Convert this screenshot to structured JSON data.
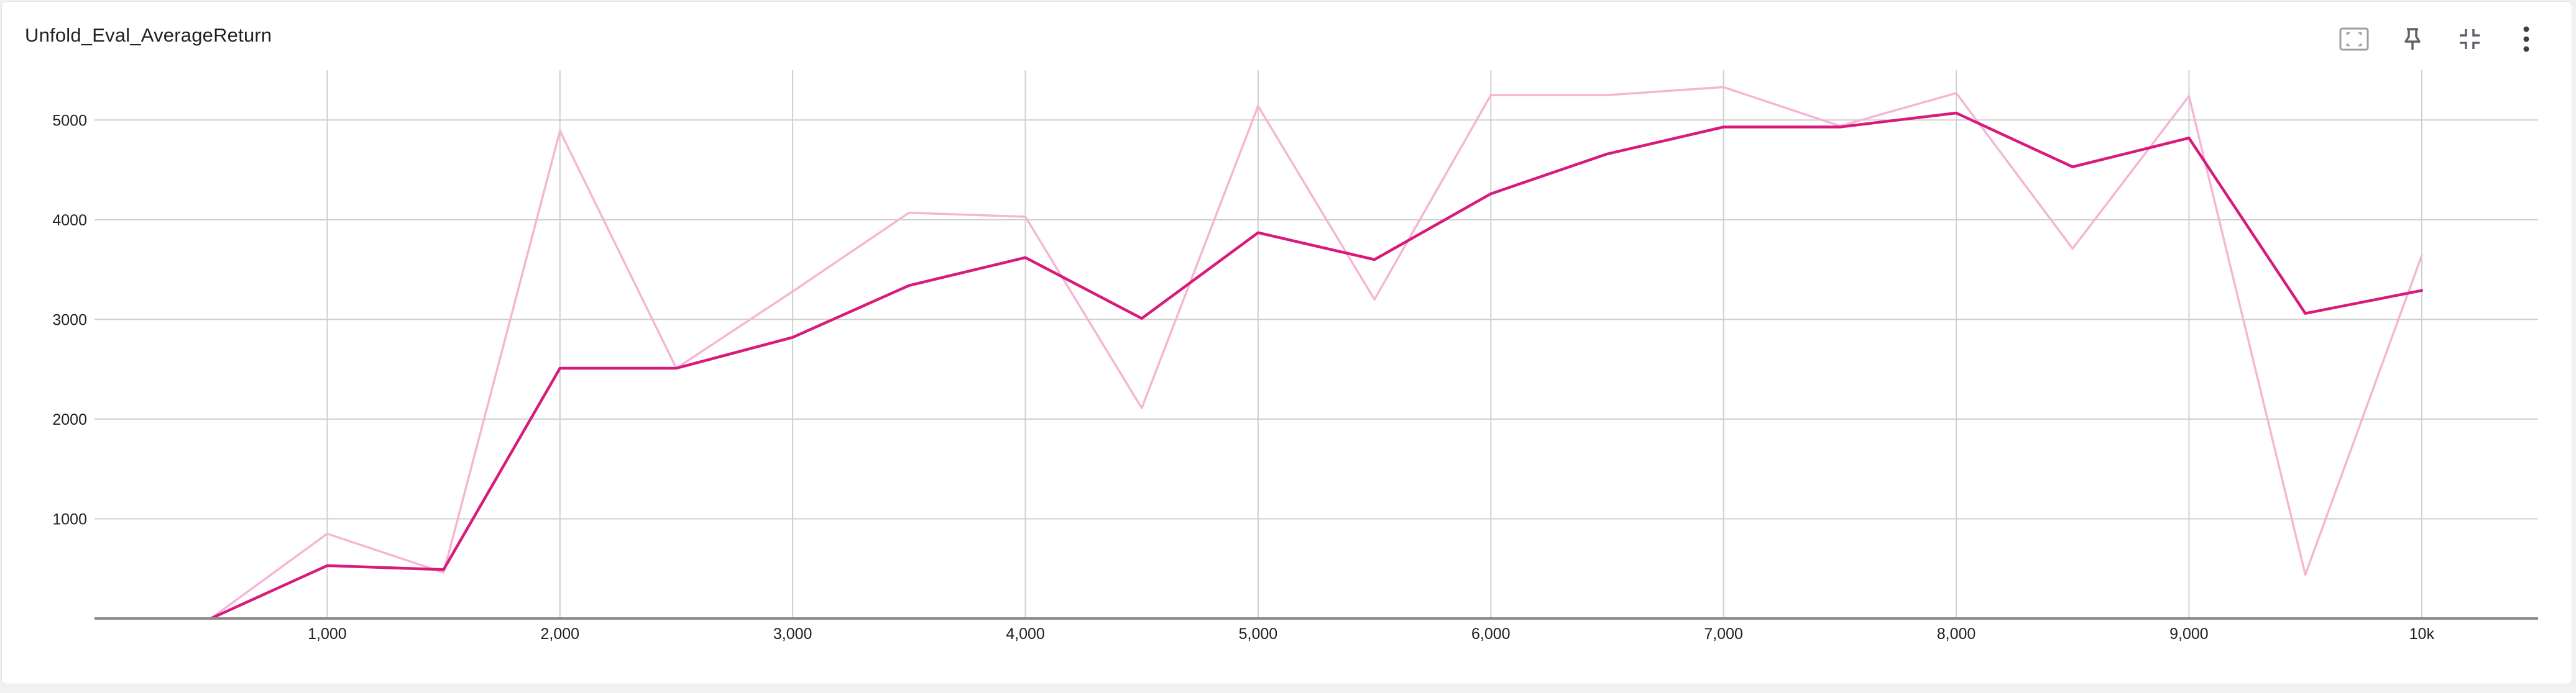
{
  "card": {
    "title": "Unfold_Eval_AverageReturn"
  },
  "toolbar": {
    "buttons": [
      {
        "name": "fit-domain-button",
        "icon": "fit-to-data-icon"
      },
      {
        "name": "pin-button",
        "icon": "pin-icon"
      },
      {
        "name": "collapse-button",
        "icon": "fullscreen-exit-icon"
      },
      {
        "name": "more-options-button",
        "icon": "more-vert-icon"
      }
    ]
  },
  "colors": {
    "smoothed": "#d81b7a",
    "raw": "#f5b5d5",
    "grid": "#cfcfcf",
    "axis": "#8c8c8c"
  },
  "chart_data": {
    "type": "line",
    "title": "Unfold_Eval_AverageReturn",
    "xlabel": "",
    "ylabel": "",
    "xlim": [
      0,
      10500
    ],
    "ylim": [
      0,
      5500
    ],
    "grid": true,
    "x_ticks": [
      {
        "value": 1000,
        "label": "1,000"
      },
      {
        "value": 2000,
        "label": "2,000"
      },
      {
        "value": 3000,
        "label": "3,000"
      },
      {
        "value": 4000,
        "label": "4,000"
      },
      {
        "value": 5000,
        "label": "5,000"
      },
      {
        "value": 6000,
        "label": "6,000"
      },
      {
        "value": 7000,
        "label": "7,000"
      },
      {
        "value": 8000,
        "label": "8,000"
      },
      {
        "value": 9000,
        "label": "9,000"
      },
      {
        "value": 10000,
        "label": "10k"
      }
    ],
    "y_ticks": [
      {
        "value": 1000,
        "label": "1000"
      },
      {
        "value": 2000,
        "label": "2000"
      },
      {
        "value": 3000,
        "label": "3000"
      },
      {
        "value": 4000,
        "label": "4000"
      },
      {
        "value": 5000,
        "label": "5000"
      }
    ],
    "series": [
      {
        "role": "raw",
        "x": [
          500,
          1000,
          1500,
          2000,
          2500,
          3000,
          3500,
          4000,
          4500,
          5000,
          5500,
          6000,
          6500,
          7000,
          7500,
          8000,
          8500,
          9000,
          9500,
          10000
        ],
        "values": [
          0,
          850,
          460,
          4890,
          2510,
          3280,
          4070,
          4030,
          2110,
          5140,
          3200,
          5250,
          5250,
          5330,
          4940,
          5270,
          3710,
          5240,
          440,
          3640
        ]
      },
      {
        "role": "smoothed",
        "x": [
          500,
          1000,
          1500,
          2000,
          2500,
          3000,
          3500,
          4000,
          4500,
          5000,
          5500,
          6000,
          6500,
          7000,
          7500,
          8000,
          8500,
          9000,
          9500,
          10000
        ],
        "values": [
          0,
          530,
          490,
          2510,
          2510,
          2820,
          3340,
          3620,
          3010,
          3870,
          3600,
          4260,
          4660,
          4930,
          4930,
          5070,
          4530,
          4820,
          3060,
          3290
        ]
      }
    ]
  }
}
